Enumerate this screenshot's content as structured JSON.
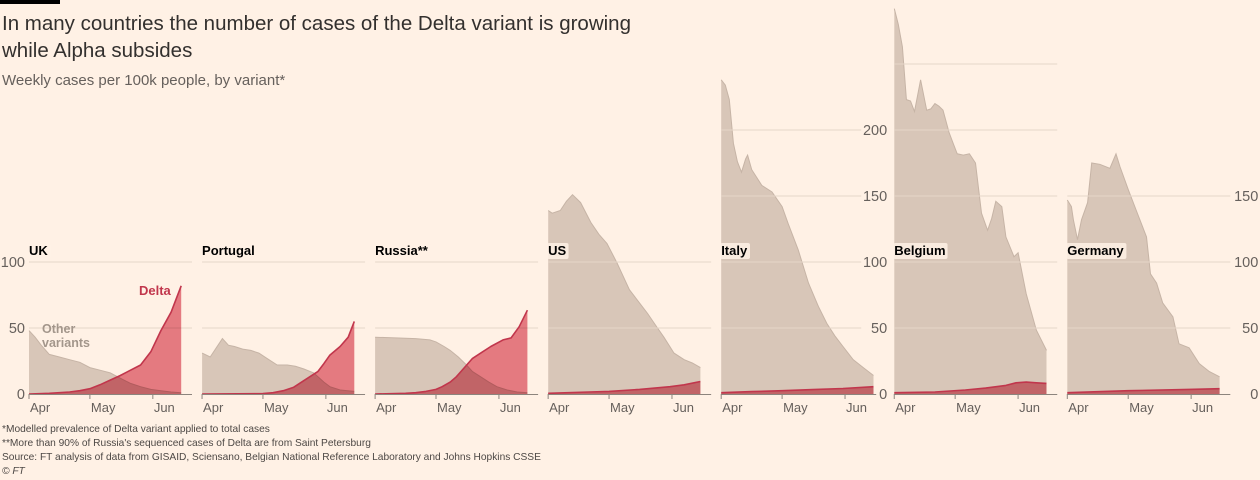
{
  "header": {
    "title": "In many countries the number of cases of the Delta variant is growing while Alpha subsides",
    "subtitle": "Weekly cases per 100k people, by variant*"
  },
  "footer": {
    "note_1": "*Modelled prevalence of Delta variant applied to total cases",
    "note_2": "**More than 90% of Russia's sequenced cases of Delta are from Saint Petersburg",
    "source": "Source: FT analysis of data from GISAID, Sciensano, Belgian National Reference Laboratory and Johns Hopkins CSSE",
    "copyright": "© FT"
  },
  "chart_data": {
    "type": "area",
    "title": "In many countries the number of cases of the Delta variant is growing while Alpha subsides",
    "subtitle": "Weekly cases per 100k people, by variant*",
    "xlabel": "",
    "ylabel": "Weekly cases per 100k people",
    "x_unit": "days since 1 Apr",
    "x_range": [
      0,
      75
    ],
    "month_ticks": [
      {
        "label": "Apr",
        "day": 0
      },
      {
        "label": "May",
        "day": 30
      },
      {
        "label": "Jun",
        "day": 61
      }
    ],
    "series_names": [
      "Other variants",
      "Delta"
    ],
    "colors": {
      "background": "#fff1e5",
      "other_variants": "#d8c6b8",
      "other_variants_line": "#c6b4a6",
      "delta": "#e4818e",
      "delta_line": "#c1364c"
    },
    "annotations": {
      "delta": "Delta",
      "other_line_1": "Other",
      "other_line_2": "variants"
    },
    "grid": true,
    "panels": [
      {
        "name": "UK",
        "gridlines": [
          50,
          100
        ],
        "axis": {
          "side": "left",
          "ticks": [
            0,
            50,
            100
          ]
        },
        "other": [
          [
            0,
            48
          ],
          [
            3,
            43
          ],
          [
            6,
            37
          ],
          [
            10,
            30
          ],
          [
            15,
            28
          ],
          [
            20,
            26
          ],
          [
            25,
            24
          ],
          [
            30,
            20
          ],
          [
            35,
            18
          ],
          [
            40,
            16
          ],
          [
            45,
            12
          ],
          [
            50,
            8
          ],
          [
            55,
            5.5
          ],
          [
            60,
            3.5
          ],
          [
            65,
            2.5
          ],
          [
            70,
            1.5
          ],
          [
            75,
            1
          ]
        ],
        "delta": [
          [
            0,
            0
          ],
          [
            10,
            0.5
          ],
          [
            20,
            1.5
          ],
          [
            25,
            2.5
          ],
          [
            30,
            4
          ],
          [
            35,
            7
          ],
          [
            40,
            10.5
          ],
          [
            45,
            14
          ],
          [
            50,
            18
          ],
          [
            55,
            22
          ],
          [
            60,
            32
          ],
          [
            65,
            48
          ],
          [
            70,
            62
          ],
          [
            75,
            82
          ]
        ]
      },
      {
        "name": "Portugal",
        "gridlines": [
          50,
          100
        ],
        "axis": null,
        "other": [
          [
            0,
            31
          ],
          [
            4,
            28
          ],
          [
            7,
            35
          ],
          [
            10,
            42
          ],
          [
            13,
            37
          ],
          [
            16,
            36
          ],
          [
            20,
            34
          ],
          [
            24,
            33
          ],
          [
            28,
            31
          ],
          [
            32,
            27
          ],
          [
            37,
            22
          ],
          [
            42,
            22
          ],
          [
            46,
            21
          ],
          [
            50,
            19
          ],
          [
            55,
            16
          ],
          [
            60,
            9
          ],
          [
            63,
            5.5
          ],
          [
            68,
            3
          ],
          [
            75,
            2
          ]
        ],
        "delta": [
          [
            0,
            0
          ],
          [
            30,
            0.3
          ],
          [
            35,
            1
          ],
          [
            40,
            2.5
          ],
          [
            45,
            5
          ],
          [
            48,
            8
          ],
          [
            52,
            12
          ],
          [
            57,
            17
          ],
          [
            60,
            23
          ],
          [
            63,
            29.5
          ],
          [
            68,
            36
          ],
          [
            72,
            43
          ],
          [
            75,
            55
          ]
        ]
      },
      {
        "name": "Russia**",
        "gridlines": [
          50,
          100
        ],
        "axis": null,
        "other": [
          [
            0,
            43
          ],
          [
            10,
            42.5
          ],
          [
            20,
            42
          ],
          [
            27,
            41
          ],
          [
            30,
            39.5
          ],
          [
            34,
            36
          ],
          [
            37,
            33
          ],
          [
            41,
            28
          ],
          [
            45,
            22
          ],
          [
            48,
            17
          ],
          [
            52,
            13
          ],
          [
            56,
            9
          ],
          [
            60,
            5.5
          ],
          [
            65,
            3
          ],
          [
            70,
            1.5
          ],
          [
            75,
            1
          ]
        ],
        "delta": [
          [
            0,
            0
          ],
          [
            15,
            0.5
          ],
          [
            20,
            1
          ],
          [
            25,
            2
          ],
          [
            30,
            3.5
          ],
          [
            33,
            5.5
          ],
          [
            37,
            9
          ],
          [
            40,
            13
          ],
          [
            44,
            20
          ],
          [
            48,
            27
          ],
          [
            52,
            31
          ],
          [
            57,
            36
          ],
          [
            63,
            41
          ],
          [
            67,
            42.5
          ],
          [
            71,
            51
          ],
          [
            75,
            63.5
          ]
        ]
      },
      {
        "name": "US",
        "gridlines": [
          50,
          100
        ],
        "axis": null,
        "other": [
          [
            0,
            139
          ],
          [
            2,
            137
          ],
          [
            6,
            139
          ],
          [
            9,
            146
          ],
          [
            12,
            151
          ],
          [
            16,
            145
          ],
          [
            21,
            130
          ],
          [
            25,
            121
          ],
          [
            29,
            114
          ],
          [
            34,
            99
          ],
          [
            40,
            79
          ],
          [
            45,
            69
          ],
          [
            49,
            61
          ],
          [
            53,
            52
          ],
          [
            57,
            43
          ],
          [
            62,
            31
          ],
          [
            67,
            26
          ],
          [
            71,
            23.5
          ],
          [
            75,
            20
          ]
        ],
        "delta": [
          [
            0,
            0.5
          ],
          [
            20,
            1.5
          ],
          [
            30,
            2
          ],
          [
            45,
            3.5
          ],
          [
            60,
            5.5
          ],
          [
            67,
            7
          ],
          [
            75,
            9.5
          ]
        ]
      },
      {
        "name": "Italy",
        "gridlines": [
          50,
          100,
          150,
          200
        ],
        "axis": {
          "side": "right",
          "ticks": [
            0,
            50,
            100,
            150,
            200
          ]
        },
        "other": [
          [
            0,
            238
          ],
          [
            2,
            234
          ],
          [
            4,
            223
          ],
          [
            6,
            190
          ],
          [
            8,
            176
          ],
          [
            10,
            168
          ],
          [
            12,
            178
          ],
          [
            13,
            181
          ],
          [
            15,
            170
          ],
          [
            20,
            158
          ],
          [
            25,
            153
          ],
          [
            30,
            142
          ],
          [
            33,
            129
          ],
          [
            38,
            109
          ],
          [
            43,
            84
          ],
          [
            48,
            66
          ],
          [
            52,
            53.5
          ],
          [
            56,
            44
          ],
          [
            60,
            36
          ],
          [
            65,
            26
          ],
          [
            70,
            20
          ],
          [
            75,
            14
          ]
        ],
        "delta": [
          [
            0,
            1
          ],
          [
            15,
            1.8
          ],
          [
            30,
            2.5
          ],
          [
            45,
            3.3
          ],
          [
            60,
            4.2
          ],
          [
            75,
            5.5
          ]
        ]
      },
      {
        "name": "Belgium",
        "gridlines": [
          50,
          100,
          150,
          200,
          250
        ],
        "axis": null,
        "other": [
          [
            0,
            292
          ],
          [
            2,
            280
          ],
          [
            4,
            263
          ],
          [
            6,
            223
          ],
          [
            8,
            222
          ],
          [
            10,
            214
          ],
          [
            13,
            238
          ],
          [
            16,
            215
          ],
          [
            18,
            216
          ],
          [
            20,
            220
          ],
          [
            22,
            218
          ],
          [
            24,
            215
          ],
          [
            27,
            198
          ],
          [
            29,
            190
          ],
          [
            31,
            182
          ],
          [
            34,
            181
          ],
          [
            37,
            182
          ],
          [
            40,
            175
          ],
          [
            43,
            137
          ],
          [
            46,
            124
          ],
          [
            48,
            133
          ],
          [
            50,
            146
          ],
          [
            53,
            142
          ],
          [
            55,
            119
          ],
          [
            59,
            104
          ],
          [
            61,
            107
          ],
          [
            65,
            76
          ],
          [
            70,
            48.5
          ],
          [
            75,
            33
          ]
        ],
        "delta": [
          [
            0,
            1
          ],
          [
            20,
            1.5
          ],
          [
            35,
            3
          ],
          [
            45,
            4.5
          ],
          [
            55,
            6.5
          ],
          [
            60,
            8.5
          ],
          [
            65,
            9
          ],
          [
            70,
            8.5
          ],
          [
            75,
            8
          ]
        ]
      },
      {
        "name": "Germany",
        "gridlines": [
          50,
          100,
          150
        ],
        "axis": {
          "side": "right",
          "ticks": [
            0,
            50,
            100,
            150
          ]
        },
        "other": [
          [
            0,
            147
          ],
          [
            2,
            142
          ],
          [
            3,
            132
          ],
          [
            5,
            117
          ],
          [
            7,
            132
          ],
          [
            10,
            145
          ],
          [
            12,
            175
          ],
          [
            16,
            174
          ],
          [
            21,
            171
          ],
          [
            24,
            182
          ],
          [
            26,
            172
          ],
          [
            30,
            155
          ],
          [
            34,
            139
          ],
          [
            39,
            119
          ],
          [
            41,
            91
          ],
          [
            44,
            84
          ],
          [
            47,
            69
          ],
          [
            52,
            58.5
          ],
          [
            55,
            38
          ],
          [
            60,
            35
          ],
          [
            65,
            23
          ],
          [
            70,
            17
          ],
          [
            75,
            13
          ]
        ],
        "delta": [
          [
            0,
            1
          ],
          [
            30,
            2.5
          ],
          [
            60,
            3.5
          ],
          [
            75,
            4
          ]
        ]
      }
    ]
  }
}
